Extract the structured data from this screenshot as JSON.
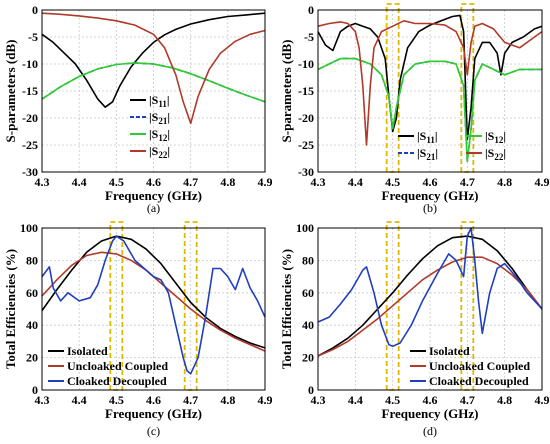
{
  "chart_data": [
    {
      "id": "a",
      "type": "line",
      "caption": "(a)",
      "xlabel": "Frequency (GHz)",
      "ylabel": "S-parameters (dB)",
      "xlim": [
        4.3,
        4.9
      ],
      "ylim": [
        -30,
        0
      ],
      "xticks": [
        "4.3",
        "4.4",
        "4.5",
        "4.6",
        "4.7",
        "4.8",
        "4.9"
      ],
      "yticks": [
        "0",
        "-5",
        "-10",
        "-15",
        "-20",
        "-25",
        "-30"
      ],
      "xtick_values": [
        4.3,
        4.4,
        4.5,
        4.6,
        4.7,
        4.8,
        4.9
      ],
      "ytick_values": [
        0,
        -5,
        -10,
        -15,
        -20,
        -25,
        -30
      ],
      "grid": true,
      "legend_position": "lower-right",
      "legend_columns": 1,
      "series": [
        {
          "name": "|S11|",
          "color": "#000000",
          "dash": "",
          "x": [
            4.3,
            4.33,
            4.36,
            4.39,
            4.42,
            4.45,
            4.47,
            4.49,
            4.51,
            4.54,
            4.57,
            4.6,
            4.63,
            4.66,
            4.7,
            4.75,
            4.8,
            4.85,
            4.9
          ],
          "y": [
            -4.5,
            -6,
            -8,
            -10,
            -13,
            -16.5,
            -18,
            -17,
            -14,
            -10.5,
            -8,
            -6,
            -4.6,
            -3.6,
            -2.6,
            -1.8,
            -1.2,
            -0.9,
            -0.6
          ]
        },
        {
          "name": "|S21|",
          "color": "#1f3fbf",
          "dash": "6,3",
          "x": [
            4.3,
            4.35,
            4.4,
            4.45,
            4.5,
            4.55,
            4.6,
            4.65,
            4.7,
            4.75,
            4.8,
            4.85,
            4.9
          ],
          "y": [
            -16.5,
            -14.2,
            -12.3,
            -10.9,
            -10.1,
            -9.8,
            -10,
            -10.7,
            -11.8,
            -13.1,
            -14.5,
            -15.8,
            -17
          ]
        },
        {
          "name": "|S12|",
          "color": "#2ecc2e",
          "dash": "",
          "x": [
            4.3,
            4.35,
            4.4,
            4.45,
            4.5,
            4.55,
            4.6,
            4.65,
            4.7,
            4.75,
            4.8,
            4.85,
            4.9
          ],
          "y": [
            -16.5,
            -14.2,
            -12.3,
            -10.9,
            -10.1,
            -9.8,
            -10,
            -10.7,
            -11.8,
            -13.1,
            -14.5,
            -15.8,
            -17
          ]
        },
        {
          "name": "|S22|",
          "color": "#b03a2a",
          "dash": "",
          "x": [
            4.3,
            4.35,
            4.4,
            4.45,
            4.5,
            4.55,
            4.6,
            4.63,
            4.66,
            4.68,
            4.7,
            4.72,
            4.75,
            4.78,
            4.82,
            4.86,
            4.9
          ],
          "y": [
            -0.6,
            -0.8,
            -1.1,
            -1.5,
            -2,
            -2.8,
            -4.5,
            -7,
            -12,
            -17,
            -21,
            -16,
            -11,
            -8,
            -5.8,
            -4.5,
            -3.8
          ]
        }
      ]
    },
    {
      "id": "b",
      "type": "line",
      "caption": "(b)",
      "xlabel": "Frequency (GHz)",
      "ylabel": "S-parameters (dB)",
      "xlim": [
        4.3,
        4.9
      ],
      "ylim": [
        -30,
        0
      ],
      "xticks": [
        "4.3",
        "4.4",
        "4.5",
        "4.6",
        "4.7",
        "4.8",
        "4.9"
      ],
      "yticks": [
        "0",
        "-5",
        "-10",
        "-15",
        "-20",
        "-25",
        "-30"
      ],
      "xtick_values": [
        4.3,
        4.4,
        4.5,
        4.6,
        4.7,
        4.8,
        4.9
      ],
      "ytick_values": [
        0,
        -5,
        -10,
        -15,
        -20,
        -25,
        -30
      ],
      "grid": true,
      "legend_position": "lower-right",
      "legend_columns": 2,
      "highlight_x": [
        4.5,
        4.7
      ],
      "series": [
        {
          "name": "|S11|",
          "color": "#000000",
          "dash": "",
          "x": [
            4.3,
            4.32,
            4.34,
            4.36,
            4.38,
            4.4,
            4.42,
            4.44,
            4.46,
            4.48,
            4.49,
            4.5,
            4.51,
            4.52,
            4.54,
            4.57,
            4.6,
            4.63,
            4.66,
            4.68,
            4.69,
            4.7,
            4.71,
            4.72,
            4.74,
            4.76,
            4.78,
            4.79,
            4.8,
            4.82,
            4.85,
            4.88,
            4.9
          ],
          "y": [
            -4,
            -6.5,
            -7.5,
            -4,
            -3,
            -2.5,
            -3,
            -3.5,
            -5,
            -9,
            -16,
            -22.5,
            -20,
            -13,
            -7,
            -4,
            -2.8,
            -2,
            -1.2,
            -1,
            -4,
            -24,
            -18,
            -9,
            -6,
            -6,
            -8,
            -12,
            -8,
            -6,
            -5,
            -3.5,
            -3
          ]
        },
        {
          "name": "|S21|",
          "color": "#1f3fbf",
          "dash": "6,3",
          "x": [
            4.3,
            4.33,
            4.36,
            4.4,
            4.44,
            4.47,
            4.49,
            4.5,
            4.51,
            4.53,
            4.56,
            4.6,
            4.64,
            4.67,
            4.69,
            4.7,
            4.71,
            4.72,
            4.74,
            4.77,
            4.8,
            4.84,
            4.88,
            4.9
          ],
          "y": [
            -11,
            -10,
            -9,
            -9,
            -10,
            -12,
            -16,
            -22,
            -18,
            -12,
            -10,
            -9.5,
            -9.5,
            -10,
            -14,
            -28,
            -22,
            -13,
            -10,
            -11,
            -12,
            -11,
            -11,
            -11
          ]
        },
        {
          "name": "|S12|",
          "color": "#2ecc2e",
          "dash": "",
          "x": [
            4.3,
            4.33,
            4.36,
            4.4,
            4.44,
            4.47,
            4.49,
            4.5,
            4.51,
            4.53,
            4.56,
            4.6,
            4.64,
            4.67,
            4.69,
            4.7,
            4.71,
            4.72,
            4.74,
            4.77,
            4.8,
            4.84,
            4.88,
            4.9
          ],
          "y": [
            -11,
            -10,
            -9,
            -9,
            -10,
            -12,
            -16,
            -22,
            -18,
            -12,
            -10,
            -9.5,
            -9.5,
            -10,
            -14,
            -28,
            -22,
            -13,
            -10,
            -11,
            -12,
            -11,
            -11,
            -11
          ]
        },
        {
          "name": "|S22|",
          "color": "#b03a2a",
          "dash": "",
          "x": [
            4.3,
            4.33,
            4.36,
            4.38,
            4.4,
            4.41,
            4.42,
            4.43,
            4.44,
            4.45,
            4.47,
            4.5,
            4.53,
            4.56,
            4.6,
            4.64,
            4.67,
            4.69,
            4.7,
            4.71,
            4.72,
            4.74,
            4.77,
            4.8,
            4.84,
            4.88,
            4.9
          ],
          "y": [
            -3,
            -2.5,
            -2.2,
            -2.5,
            -4,
            -7,
            -14,
            -25,
            -14,
            -7,
            -4,
            -3,
            -2,
            -2.5,
            -2.5,
            -2.8,
            -4,
            -7,
            -12,
            -6,
            -3,
            -2.5,
            -3.5,
            -6,
            -7,
            -5,
            -4
          ]
        }
      ]
    },
    {
      "id": "c",
      "type": "line",
      "caption": "(c)",
      "xlabel": "Frequency (GHz)",
      "ylabel": "Total Efficiencies (%)",
      "xlim": [
        4.3,
        4.9
      ],
      "ylim": [
        0,
        100
      ],
      "xticks": [
        "4.3",
        "4.4",
        "4.5",
        "4.6",
        "4.7",
        "4.8",
        "4.9"
      ],
      "yticks": [
        "0",
        "20",
        "40",
        "60",
        "80",
        "100"
      ],
      "xtick_values": [
        4.3,
        4.4,
        4.5,
        4.6,
        4.7,
        4.8,
        4.9
      ],
      "ytick_values": [
        0,
        20,
        40,
        60,
        80,
        100
      ],
      "grid": true,
      "legend_position": "lower-left",
      "legend_columns": 1,
      "highlight_x": [
        4.5,
        4.7
      ],
      "series": [
        {
          "name": "Isolated",
          "color": "#000000",
          "dash": "",
          "x": [
            4.3,
            4.34,
            4.38,
            4.42,
            4.46,
            4.5,
            4.54,
            4.58,
            4.62,
            4.66,
            4.7,
            4.74,
            4.78,
            4.82,
            4.86,
            4.9
          ],
          "y": [
            49,
            62,
            74,
            85,
            92,
            95,
            93,
            87,
            78,
            66,
            54,
            45,
            38,
            33,
            29,
            26
          ]
        },
        {
          "name": "Uncloaked Coupled",
          "color": "#b03a2a",
          "dash": "",
          "x": [
            4.3,
            4.34,
            4.38,
            4.42,
            4.46,
            4.5,
            4.54,
            4.58,
            4.62,
            4.66,
            4.7,
            4.74,
            4.78,
            4.82,
            4.86,
            4.9
          ],
          "y": [
            58,
            68,
            77,
            83,
            85,
            84,
            80,
            74,
            66,
            58,
            50,
            43,
            37,
            32,
            28,
            24
          ]
        },
        {
          "name": "Cloaked Decoupled",
          "color": "#1f3fbf",
          "dash": "",
          "x": [
            4.3,
            4.32,
            4.33,
            4.35,
            4.37,
            4.4,
            4.43,
            4.45,
            4.47,
            4.49,
            4.5,
            4.52,
            4.55,
            4.6,
            4.62,
            4.64,
            4.66,
            4.68,
            4.69,
            4.7,
            4.72,
            4.74,
            4.76,
            4.78,
            4.8,
            4.82,
            4.84,
            4.86,
            4.88,
            4.9
          ],
          "y": [
            70,
            76,
            63,
            55,
            60,
            55,
            57,
            65,
            80,
            92,
            95,
            92,
            80,
            70,
            68,
            60,
            40,
            20,
            12,
            10,
            20,
            45,
            75,
            75,
            70,
            62,
            75,
            63,
            55,
            45
          ]
        }
      ]
    },
    {
      "id": "d",
      "type": "line",
      "caption": "(d)",
      "xlabel": "Frequency (GHz)",
      "ylabel": "Total Efficiencies (%)",
      "xlim": [
        4.3,
        4.9
      ],
      "ylim": [
        0,
        100
      ],
      "xticks": [
        "4.3",
        "4.4",
        "4.5",
        "4.6",
        "4.7",
        "4.8",
        "4.9"
      ],
      "yticks": [
        "0",
        "20",
        "40",
        "60",
        "80",
        "100"
      ],
      "xtick_values": [
        4.3,
        4.4,
        4.5,
        4.6,
        4.7,
        4.8,
        4.9
      ],
      "ytick_values": [
        0,
        20,
        40,
        60,
        80,
        100
      ],
      "grid": true,
      "legend_position": "lower-right",
      "legend_columns": 1,
      "highlight_x": [
        4.5,
        4.7
      ],
      "series": [
        {
          "name": "Isolated",
          "color": "#000000",
          "dash": "",
          "x": [
            4.3,
            4.34,
            4.38,
            4.42,
            4.46,
            4.5,
            4.54,
            4.58,
            4.62,
            4.66,
            4.7,
            4.74,
            4.78,
            4.82,
            4.86,
            4.9
          ],
          "y": [
            21,
            26,
            32,
            40,
            50,
            60,
            71,
            81,
            89,
            94,
            95,
            93,
            86,
            75,
            62,
            50
          ]
        },
        {
          "name": "Uncloaked Coupled",
          "color": "#b03a2a",
          "dash": "",
          "x": [
            4.3,
            4.34,
            4.38,
            4.42,
            4.46,
            4.5,
            4.54,
            4.58,
            4.62,
            4.66,
            4.7,
            4.74,
            4.78,
            4.82,
            4.86,
            4.9
          ],
          "y": [
            21,
            25,
            30,
            37,
            44,
            52,
            60,
            68,
            74,
            79,
            82,
            82,
            78,
            71,
            62,
            50
          ]
        },
        {
          "name": "Cloaked Decoupled",
          "color": "#1f3fbf",
          "dash": "",
          "x": [
            4.3,
            4.33,
            4.36,
            4.39,
            4.42,
            4.43,
            4.45,
            4.47,
            4.49,
            4.5,
            4.52,
            4.55,
            4.58,
            4.62,
            4.65,
            4.67,
            4.69,
            4.7,
            4.71,
            4.72,
            4.73,
            4.74,
            4.76,
            4.78,
            4.8,
            4.83,
            4.86,
            4.9
          ],
          "y": [
            42,
            45,
            53,
            62,
            74,
            76,
            60,
            40,
            28,
            27,
            29,
            40,
            55,
            72,
            84,
            80,
            70,
            95,
            100,
            80,
            55,
            35,
            60,
            75,
            78,
            70,
            60,
            50
          ]
        }
      ]
    }
  ]
}
